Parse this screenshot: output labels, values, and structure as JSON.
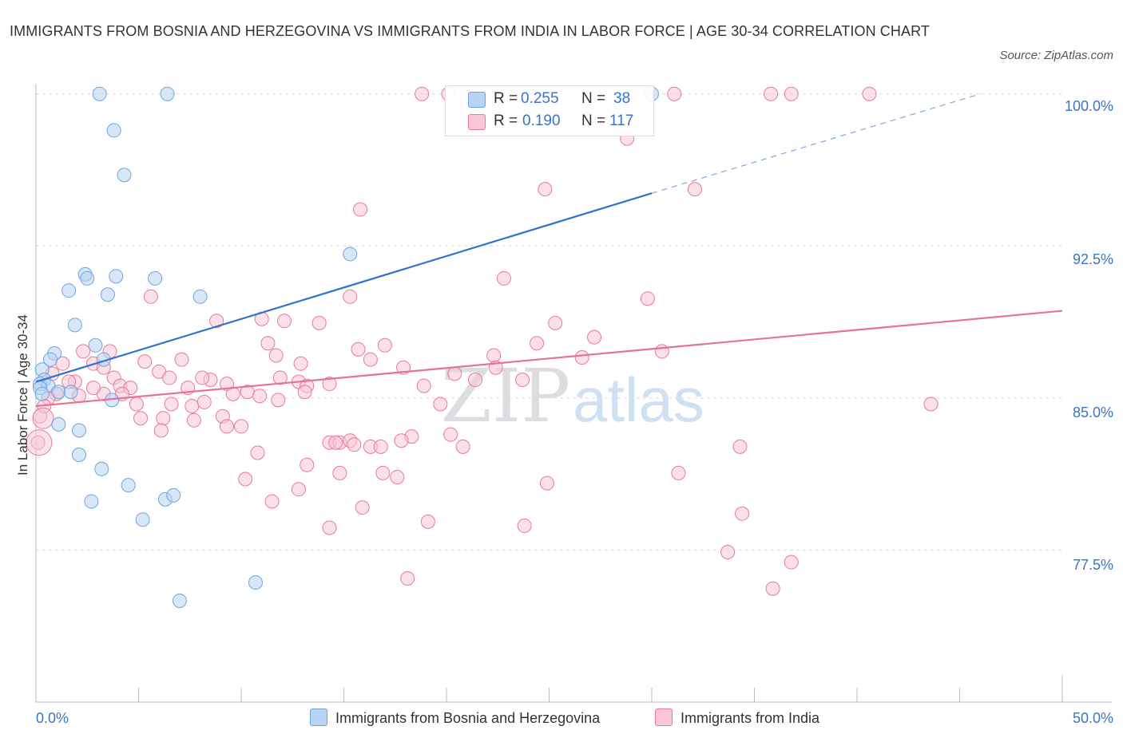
{
  "title": "IMMIGRANTS FROM BOSNIA AND HERZEGOVINA VS IMMIGRANTS FROM INDIA IN LABOR FORCE | AGE 30-34 CORRELATION CHART",
  "source": "Source: ZipAtlas.com",
  "watermark": {
    "zip": "ZIP",
    "atlas": "atlas"
  },
  "legend_top": {
    "rows": [
      {
        "r_label": "R = ",
        "r_value": "0.255",
        "n_label": "N = ",
        "n_value": "38",
        "color": "#a9c8f0"
      },
      {
        "r_label": "R = ",
        "r_value": "0.190",
        "n_label": "N = ",
        "n_value": "117",
        "color": "#f5b8ca"
      }
    ]
  },
  "chart_data": {
    "type": "scatter",
    "title": "IMMIGRANTS FROM BOSNIA AND HERZEGOVINA VS IMMIGRANTS FROM INDIA IN LABOR FORCE | AGE 30-34 CORRELATION CHART",
    "xlabel": "",
    "ylabel": "In Labor Force | Age 30-34",
    "xlim": [
      0,
      50
    ],
    "ylim": [
      70,
      100.5
    ],
    "x_tick_labels": [
      "0.0%",
      "50.0%"
    ],
    "y_ticks": [
      100.0,
      92.5,
      85.0,
      77.5
    ],
    "y_tick_labels": [
      "100.0%",
      "92.5%",
      "85.0%",
      "77.5%"
    ],
    "grid": true,
    "legend_placement": "bottom",
    "series": [
      {
        "name": "Immigrants from Bosnia and Herzegovina",
        "color": "#6fa3e0",
        "fill": "#b8d3f3",
        "r": 0.255,
        "n": 38,
        "trend": {
          "x0": 0,
          "y0": 85.8,
          "x1": 30,
          "y1": 95.1,
          "dash_to_x": 46,
          "dash_to_y": 100.0
        },
        "points": [
          [
            3.1,
            100.0
          ],
          [
            6.4,
            100.0
          ],
          [
            30.0,
            100.0
          ],
          [
            3.8,
            98.2
          ],
          [
            4.3,
            96.0
          ],
          [
            15.3,
            92.1
          ],
          [
            2.4,
            91.1
          ],
          [
            3.9,
            91.0
          ],
          [
            1.6,
            90.3
          ],
          [
            2.5,
            90.9
          ],
          [
            5.8,
            90.9
          ],
          [
            3.5,
            90.1
          ],
          [
            8.0,
            90.0
          ],
          [
            1.9,
            88.6
          ],
          [
            0.9,
            87.2
          ],
          [
            2.9,
            87.6
          ],
          [
            0.7,
            86.9
          ],
          [
            3.3,
            86.9
          ],
          [
            0.3,
            86.4
          ],
          [
            0.4,
            85.9
          ],
          [
            0.2,
            85.7
          ],
          [
            0.6,
            85.6
          ],
          [
            1.1,
            85.3
          ],
          [
            1.7,
            85.3
          ],
          [
            0.2,
            85.5
          ],
          [
            3.7,
            84.9
          ],
          [
            1.1,
            83.7
          ],
          [
            2.1,
            83.4
          ],
          [
            2.1,
            82.2
          ],
          [
            3.2,
            81.5
          ],
          [
            4.5,
            80.7
          ],
          [
            2.7,
            79.9
          ],
          [
            6.3,
            80.0
          ],
          [
            6.7,
            80.2
          ],
          [
            5.2,
            79.0
          ],
          [
            10.7,
            75.9
          ],
          [
            7.0,
            75.0
          ],
          [
            0.3,
            85.2
          ]
        ]
      },
      {
        "name": "Immigrants from India",
        "color": "#e8799d",
        "fill": "#f8c6d4",
        "r": 0.19,
        "n": 117,
        "trend": {
          "x0": 0,
          "y0": 84.6,
          "x1": 50,
          "y1": 89.3
        },
        "points": [
          [
            18.8,
            100.0
          ],
          [
            20.1,
            100.0
          ],
          [
            31.1,
            100.0
          ],
          [
            35.8,
            100.0
          ],
          [
            36.8,
            100.0
          ],
          [
            40.6,
            100.0
          ],
          [
            28.8,
            97.8
          ],
          [
            24.8,
            95.3
          ],
          [
            32.1,
            95.3
          ],
          [
            15.8,
            94.3
          ],
          [
            22.8,
            90.9
          ],
          [
            5.6,
            90.0
          ],
          [
            15.3,
            90.0
          ],
          [
            29.8,
            89.9
          ],
          [
            8.8,
            88.8
          ],
          [
            11.0,
            88.9
          ],
          [
            12.1,
            88.8
          ],
          [
            13.8,
            88.7
          ],
          [
            25.3,
            88.7
          ],
          [
            24.4,
            87.7
          ],
          [
            27.2,
            88.0
          ],
          [
            11.3,
            87.7
          ],
          [
            17.0,
            87.6
          ],
          [
            15.7,
            87.4
          ],
          [
            11.7,
            87.1
          ],
          [
            22.3,
            87.1
          ],
          [
            2.3,
            87.3
          ],
          [
            3.6,
            87.3
          ],
          [
            7.1,
            86.9
          ],
          [
            16.3,
            86.9
          ],
          [
            5.3,
            86.8
          ],
          [
            1.3,
            86.7
          ],
          [
            2.8,
            86.7
          ],
          [
            17.9,
            86.5
          ],
          [
            22.4,
            86.5
          ],
          [
            6.0,
            86.3
          ],
          [
            20.4,
            86.2
          ],
          [
            0.8,
            86.2
          ],
          [
            6.5,
            86.0
          ],
          [
            3.8,
            86.0
          ],
          [
            11.9,
            86.0
          ],
          [
            12.8,
            85.8
          ],
          [
            14.3,
            85.7
          ],
          [
            8.5,
            85.9
          ],
          [
            1.9,
            85.8
          ],
          [
            4.1,
            85.6
          ],
          [
            9.3,
            85.7
          ],
          [
            13.2,
            85.6
          ],
          [
            7.4,
            85.5
          ],
          [
            4.6,
            85.5
          ],
          [
            18.9,
            85.6
          ],
          [
            23.7,
            85.9
          ],
          [
            10.3,
            85.3
          ],
          [
            13.1,
            85.3
          ],
          [
            1.0,
            85.2
          ],
          [
            3.3,
            85.2
          ],
          [
            4.2,
            85.2
          ],
          [
            10.9,
            85.1
          ],
          [
            9.6,
            85.2
          ],
          [
            2.1,
            85.1
          ],
          [
            0.6,
            85.0
          ],
          [
            4.9,
            84.7
          ],
          [
            6.6,
            84.7
          ],
          [
            7.6,
            84.6
          ],
          [
            8.2,
            84.8
          ],
          [
            11.8,
            84.9
          ],
          [
            19.7,
            84.7
          ],
          [
            9.1,
            84.1
          ],
          [
            5.1,
            84.0
          ],
          [
            6.2,
            84.0
          ],
          [
            7.7,
            83.9
          ],
          [
            0.2,
            84.1
          ],
          [
            9.3,
            83.6
          ],
          [
            10.0,
            83.6
          ],
          [
            6.1,
            83.4
          ],
          [
            20.2,
            83.2
          ],
          [
            18.3,
            83.1
          ],
          [
            17.8,
            82.9
          ],
          [
            14.3,
            82.8
          ],
          [
            14.8,
            82.8
          ],
          [
            14.6,
            82.8
          ],
          [
            15.3,
            82.9
          ],
          [
            15.5,
            82.7
          ],
          [
            16.3,
            82.6
          ],
          [
            16.8,
            82.6
          ],
          [
            20.8,
            82.6
          ],
          [
            34.3,
            82.6
          ],
          [
            10.8,
            82.3
          ],
          [
            13.2,
            81.7
          ],
          [
            16.9,
            81.3
          ],
          [
            17.6,
            81.1
          ],
          [
            14.8,
            81.3
          ],
          [
            31.3,
            81.3
          ],
          [
            10.2,
            81.0
          ],
          [
            24.9,
            80.8
          ],
          [
            12.8,
            80.5
          ],
          [
            11.5,
            79.9
          ],
          [
            15.9,
            79.6
          ],
          [
            34.4,
            79.3
          ],
          [
            19.1,
            78.9
          ],
          [
            23.8,
            78.7
          ],
          [
            14.3,
            78.6
          ],
          [
            0.1,
            82.8
          ],
          [
            33.7,
            77.4
          ],
          [
            36.8,
            76.9
          ],
          [
            18.1,
            76.1
          ],
          [
            35.9,
            75.6
          ],
          [
            43.6,
            84.7
          ],
          [
            2.8,
            85.5
          ],
          [
            1.6,
            85.8
          ],
          [
            0.4,
            84.6
          ],
          [
            8.1,
            86.0
          ],
          [
            3.3,
            86.5
          ],
          [
            12.9,
            86.7
          ],
          [
            21.4,
            85.9
          ],
          [
            26.6,
            87.0
          ],
          [
            30.5,
            87.3
          ]
        ]
      }
    ]
  },
  "axis": {
    "y_title": "In Labor Force | Age 30-34",
    "x_min_label": "0.0%",
    "x_max_label": "50.0%",
    "y_labels": [
      "100.0%",
      "92.5%",
      "85.0%",
      "77.5%"
    ]
  },
  "legend_bottom": {
    "items": [
      {
        "label": "Immigrants from Bosnia and Herzegovina",
        "color": "#b8d3f3",
        "border": "#6fa3e0"
      },
      {
        "label": "Immigrants from India",
        "color": "#f8c6d4",
        "border": "#e8799d"
      }
    ]
  }
}
